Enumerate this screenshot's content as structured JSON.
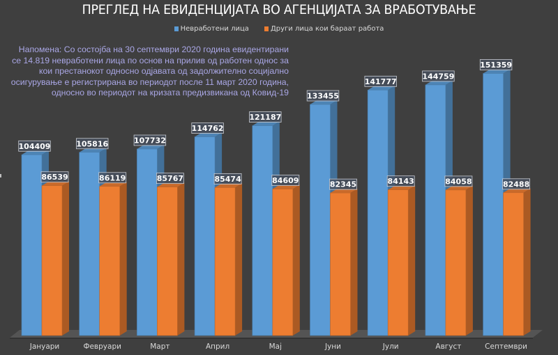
{
  "chart_data": {
    "type": "bar",
    "style": "3d-clustered-column",
    "title": "ПРЕГЛЕД НА ЕВИДЕНЦИЈАТА ВО АГЕНЦИЈАТА ЗА ВРАБОТУВАЊЕ",
    "xlabel": "",
    "ylabel": "",
    "ylim": [
      0,
      160000
    ],
    "grid": false,
    "legend_position": "top-center",
    "categories": [
      "Јануари",
      "Февруари",
      "Март",
      "Април",
      "Мај",
      "Јуни",
      "Јули",
      "Август",
      "Септември"
    ],
    "series": [
      {
        "name": "Невработени лица",
        "color": "#5b9bd5",
        "values": [
          104409,
          105816,
          107732,
          114762,
          121187,
          133455,
          141777,
          144759,
          151359
        ]
      },
      {
        "name": "Други лица кои бараат работа",
        "color": "#ed7d31",
        "values": [
          86539,
          86119,
          85767,
          85474,
          84609,
          82345,
          84143,
          84058,
          82488
        ]
      }
    ],
    "data_labels": true,
    "annotation": [
      "Напомена: Со состојба на 30 септември 2020 година евидентирани",
      "се 14.819 невработени лица по основ на прилив од работен однос за",
      "кои престанокот односно одјавата од задолжително социјално",
      "осигурување е регистрирана во периодот после 11 март 2020 година,",
      "односно во периодот на кризата предизвикана од Ковид-19"
    ]
  },
  "colors": {
    "background": "#3f3f3f",
    "annotation_text": "#aaa7e6",
    "title_text": "#ffffff"
  }
}
